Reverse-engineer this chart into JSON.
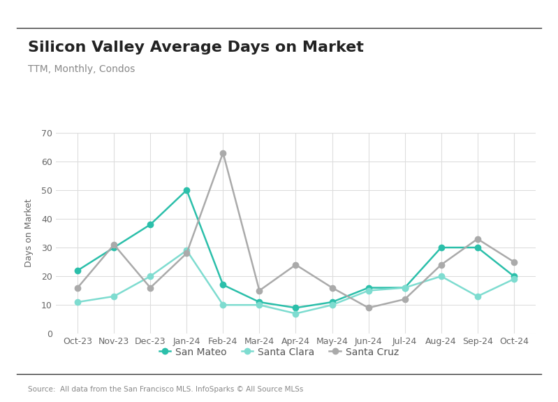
{
  "title": "Silicon Valley Average Days on Market",
  "subtitle": "TTM, Monthly, Condos",
  "ylabel": "Days on Market",
  "source": "Source:  All data from the San Francisco MLS. InfoSparks © All Source MLSs",
  "months": [
    "Oct-23",
    "Nov-23",
    "Dec-23",
    "Jan-24",
    "Feb-24",
    "Mar-24",
    "Apr-24",
    "May-24",
    "Jun-24",
    "Jul-24",
    "Aug-24",
    "Sep-24",
    "Oct-24"
  ],
  "san_mateo": [
    22,
    30,
    38,
    50,
    17,
    11,
    9,
    11,
    16,
    16,
    30,
    30,
    20
  ],
  "santa_clara": [
    11,
    13,
    20,
    29,
    10,
    10,
    7,
    10,
    15,
    16,
    20,
    13,
    19
  ],
  "santa_cruz": [
    16,
    31,
    16,
    28,
    63,
    15,
    24,
    16,
    9,
    12,
    24,
    33,
    25
  ],
  "san_mateo_color": "#2bbfaa",
  "santa_clara_color": "#7edcd0",
  "santa_cruz_color": "#aaaaaa",
  "ylim": [
    0,
    70
  ],
  "yticks": [
    0,
    10,
    20,
    30,
    40,
    50,
    60,
    70
  ],
  "background_color": "#ffffff",
  "grid_color": "#dddddd",
  "title_fontsize": 16,
  "subtitle_fontsize": 10,
  "axis_fontsize": 9,
  "legend_fontsize": 10,
  "marker_size": 6,
  "line_width": 1.8
}
